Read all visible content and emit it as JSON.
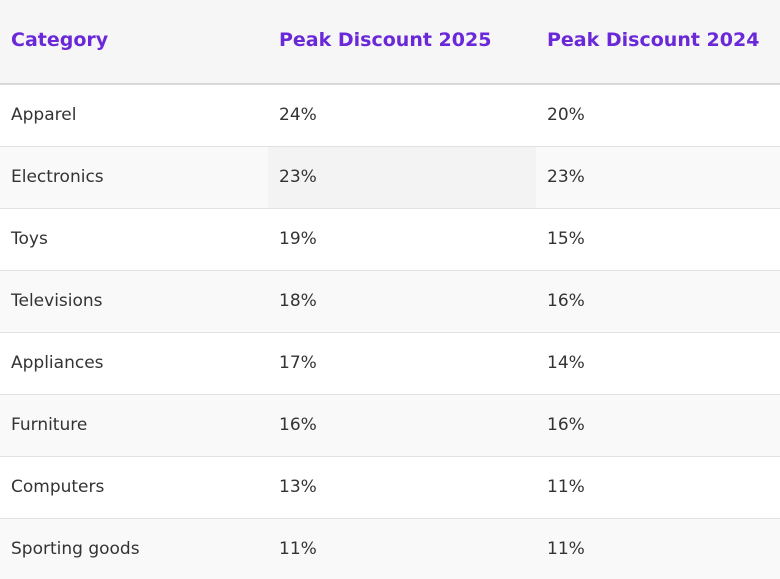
{
  "table": {
    "headers": {
      "category": "Category",
      "discount_2025": "Peak Discount 2025",
      "discount_2024": "Peak Discount 2024"
    },
    "rows": [
      {
        "category": "Apparel",
        "discount_2025": "24%",
        "discount_2024": "20%"
      },
      {
        "category": "Electronics",
        "discount_2025": "23%",
        "discount_2024": "23%"
      },
      {
        "category": "Toys",
        "discount_2025": "19%",
        "discount_2024": "15%"
      },
      {
        "category": "Televisions",
        "discount_2025": "18%",
        "discount_2024": "16%"
      },
      {
        "category": "Appliances",
        "discount_2025": "17%",
        "discount_2024": "14%"
      },
      {
        "category": "Furniture",
        "discount_2025": "16%",
        "discount_2024": "16%"
      },
      {
        "category": "Computers",
        "discount_2025": "13%",
        "discount_2024": "11%"
      },
      {
        "category": "Sporting goods",
        "discount_2025": "11%",
        "discount_2024": "11%"
      }
    ]
  },
  "colors": {
    "header_text": "#6a28d9",
    "body_text": "#333333",
    "header_background": "#f6f6f6"
  }
}
